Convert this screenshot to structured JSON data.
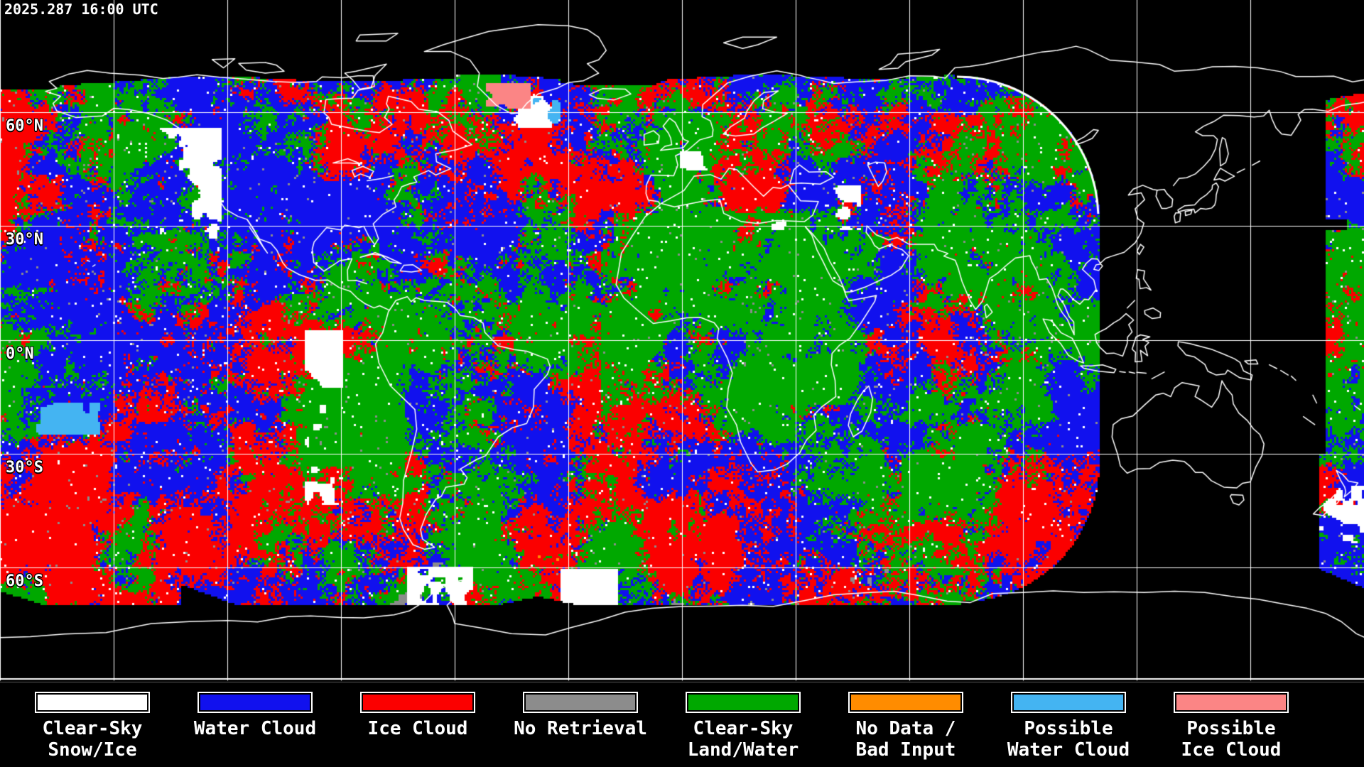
{
  "header": {
    "timestamp": "2025.287 16:00 UTC"
  },
  "map": {
    "projection": "equirectangular",
    "latitude_labels": [
      "60°N",
      "30°N",
      "0°N",
      "30°S",
      "60°S"
    ],
    "grid_step_degrees": 30
  },
  "legend": {
    "items": [
      {
        "key": "clear_sky_snow_ice",
        "line1": "Clear-Sky",
        "line2": "Snow/Ice"
      },
      {
        "key": "water_cloud",
        "line1": "Water Cloud",
        "line2": ""
      },
      {
        "key": "ice_cloud",
        "line1": "Ice Cloud",
        "line2": ""
      },
      {
        "key": "no_retrieval",
        "line1": "No Retrieval",
        "line2": ""
      },
      {
        "key": "clear_sky_land_water",
        "line1": "Clear-Sky",
        "line2": "Land/Water"
      },
      {
        "key": "no_data_bad_input",
        "line1": "No Data /",
        "line2": "Bad Input"
      },
      {
        "key": "possible_water_cloud",
        "line1": "Possible",
        "line2": "Water Cloud"
      },
      {
        "key": "possible_ice_cloud",
        "line1": "Possible",
        "line2": "Ice Cloud"
      }
    ]
  },
  "colors": {
    "background": "#000000",
    "coastline": "#ffffff",
    "gridline": "#ffffff",
    "label_text": "#ffffff",
    "classes": {
      "clear_sky_snow_ice": "#ffffff",
      "water_cloud": "#1111ee",
      "ice_cloud": "#fb0000",
      "no_retrieval": "#8c8c8c",
      "clear_sky_land_water": "#00a800",
      "no_data_bad_input": "#ff8c00",
      "possible_water_cloud": "#44b4f2",
      "possible_ice_cloud": "#fb8585"
    }
  }
}
